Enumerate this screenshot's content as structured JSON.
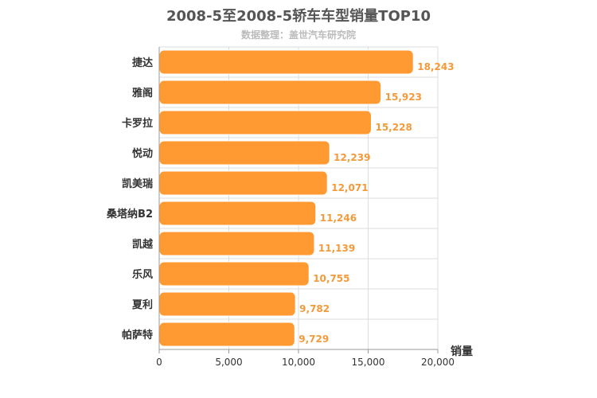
{
  "chart_data": {
    "type": "bar",
    "orientation": "horizontal",
    "title": "2008-5至2008-5轿车车型销量TOP10",
    "subtitle": "数据整理：盖世汽车研究院",
    "categories": [
      "捷达",
      "雅阁",
      "卡罗拉",
      "悦动",
      "凯美瑞",
      "桑塔纳B2",
      "凯越",
      "乐风",
      "夏利",
      "帕萨特"
    ],
    "values": [
      18243,
      15923,
      15228,
      12239,
      12071,
      11246,
      11139,
      10755,
      9782,
      9729
    ],
    "value_labels": [
      "18,243",
      "15,923",
      "15,228",
      "12,239",
      "12,071",
      "11,246",
      "11,139",
      "10,755",
      "9,782",
      "9,729"
    ],
    "xlabel": "销量",
    "ylabel": "",
    "xlim": [
      0,
      20000
    ],
    "xticks": [
      0,
      5000,
      10000,
      15000,
      20000
    ],
    "xtick_labels": [
      "0",
      "5,000",
      "10,000",
      "15,000",
      "20,000"
    ],
    "grid": true,
    "legend": "none",
    "colors": {
      "bar": "#ff9a33",
      "value_label": "#f39a3a",
      "grid": "#dddddd"
    }
  }
}
